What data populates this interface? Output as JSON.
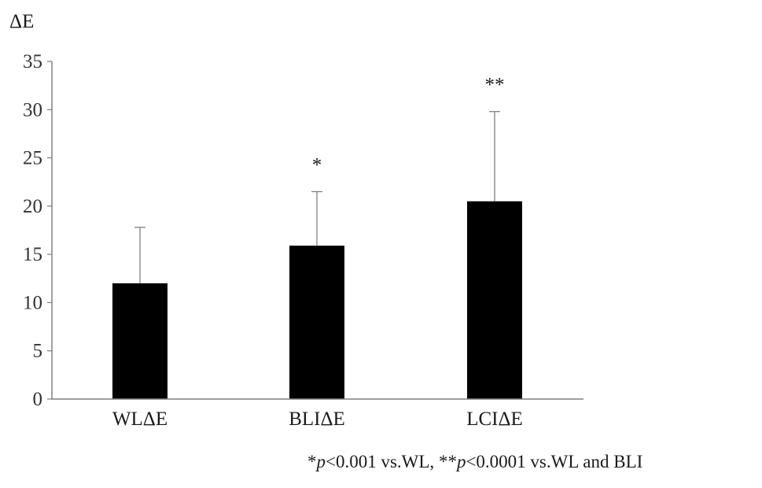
{
  "chart_data": {
    "type": "bar",
    "ylabel": "ΔE",
    "categories": [
      "WLΔE",
      "BLIΔE",
      "LCIΔE"
    ],
    "values": [
      12.0,
      15.9,
      20.5
    ],
    "error_upper": [
      17.8,
      21.5,
      29.8
    ],
    "significance": [
      "",
      "*",
      "**"
    ],
    "ylim": [
      0,
      35
    ],
    "yticks": [
      0,
      5,
      10,
      15,
      20,
      25,
      30,
      35
    ],
    "grid": false,
    "colors": {
      "bar": "#000000",
      "axis": "#808080",
      "error_bar": "#808080"
    }
  },
  "footnote": {
    "star1": "*",
    "p1": "p",
    "text1": "<0.001 vs.WL, ",
    "star2": "**",
    "p2": "p",
    "text2": "<0.0001 vs.WL and BLI"
  }
}
